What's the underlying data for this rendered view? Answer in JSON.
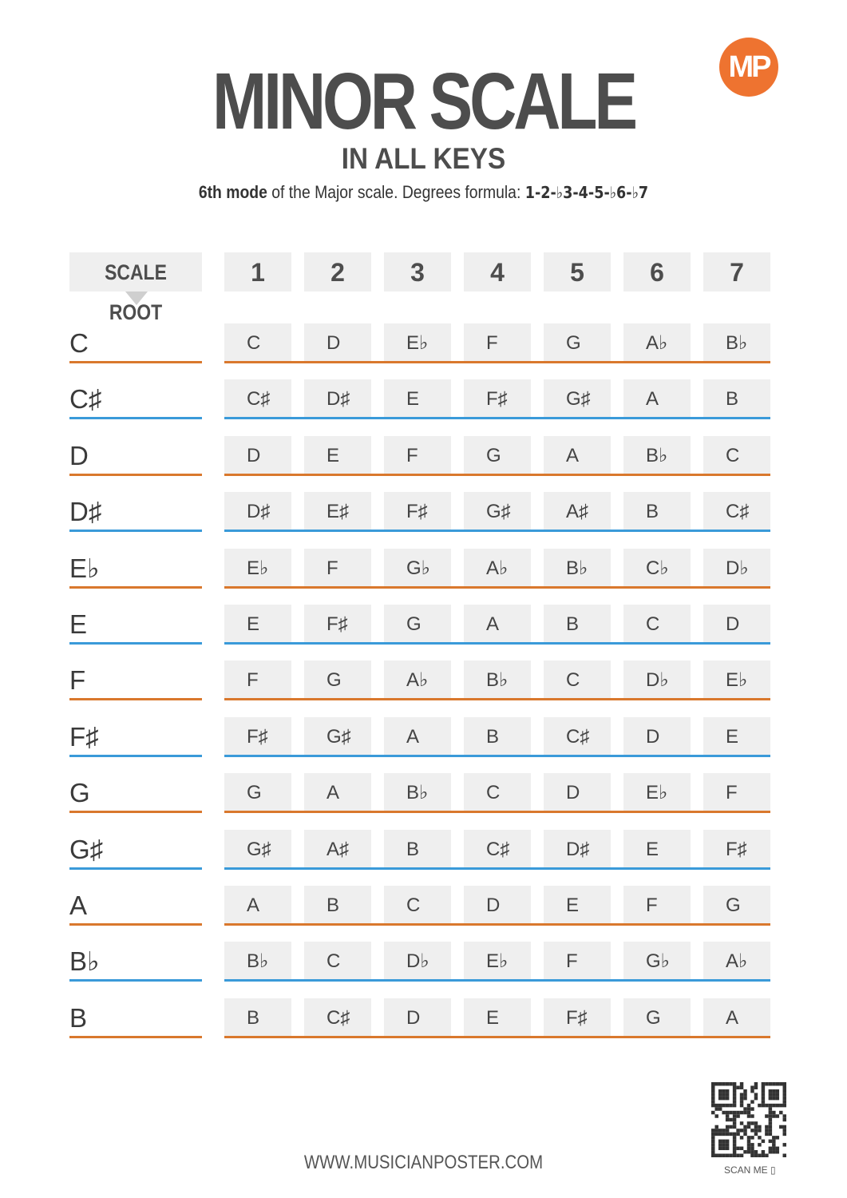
{
  "title": "MINOR SCALE",
  "subtitle": "IN ALL KEYS",
  "description": {
    "bold": "6th mode",
    "text": " of the Major scale. Degrees formula: ",
    "formula": "1-2-♭3-4-5-♭6-♭7"
  },
  "logo_text": "MP",
  "header": {
    "root": "SCALE ROOT",
    "degrees": [
      "1",
      "2",
      "3",
      "4",
      "5",
      "6",
      "7"
    ]
  },
  "colors": {
    "orange": "#d9782d",
    "blue": "#3a9ad9",
    "logo": "#ee7330"
  },
  "rows": [
    {
      "root": "C",
      "notes": [
        "C",
        "D",
        "E♭",
        "F",
        "G",
        "A♭",
        "B♭"
      ]
    },
    {
      "root": "C♯",
      "notes": [
        "C♯",
        "D♯",
        "E",
        "F♯",
        "G♯",
        "A",
        "B"
      ]
    },
    {
      "root": "D",
      "notes": [
        "D",
        "E",
        "F",
        "G",
        "A",
        "B♭",
        "C"
      ]
    },
    {
      "root": "D♯",
      "notes": [
        "D♯",
        "E♯",
        "F♯",
        "G♯",
        "A♯",
        "B",
        "C♯"
      ]
    },
    {
      "root": "E♭",
      "notes": [
        "E♭",
        "F",
        "G♭",
        "A♭",
        "B♭",
        "C♭",
        "D♭"
      ]
    },
    {
      "root": "E",
      "notes": [
        "E",
        "F♯",
        "G",
        "A",
        "B",
        "C",
        "D"
      ]
    },
    {
      "root": "F",
      "notes": [
        "F",
        "G",
        "A♭",
        "B♭",
        "C",
        "D♭",
        "E♭"
      ]
    },
    {
      "root": "F♯",
      "notes": [
        "F♯",
        "G♯",
        "A",
        "B",
        "C♯",
        "D",
        "E"
      ]
    },
    {
      "root": "G",
      "notes": [
        "G",
        "A",
        "B♭",
        "C",
        "D",
        "E♭",
        "F"
      ]
    },
    {
      "root": "G♯",
      "notes": [
        "G♯",
        "A♯",
        "B",
        "C♯",
        "D♯",
        "E",
        "F♯"
      ]
    },
    {
      "root": "A",
      "notes": [
        "A",
        "B",
        "C",
        "D",
        "E",
        "F",
        "G"
      ]
    },
    {
      "root": "B♭",
      "notes": [
        "B♭",
        "C",
        "D♭",
        "E♭",
        "F",
        "G♭",
        "A♭"
      ]
    },
    {
      "root": "B",
      "notes": [
        "B",
        "C♯",
        "D",
        "E",
        "F♯",
        "G",
        "A"
      ]
    }
  ],
  "footer": "WWW.MUSICIANPOSTER.COM",
  "qr_label": "SCAN ME ▯"
}
